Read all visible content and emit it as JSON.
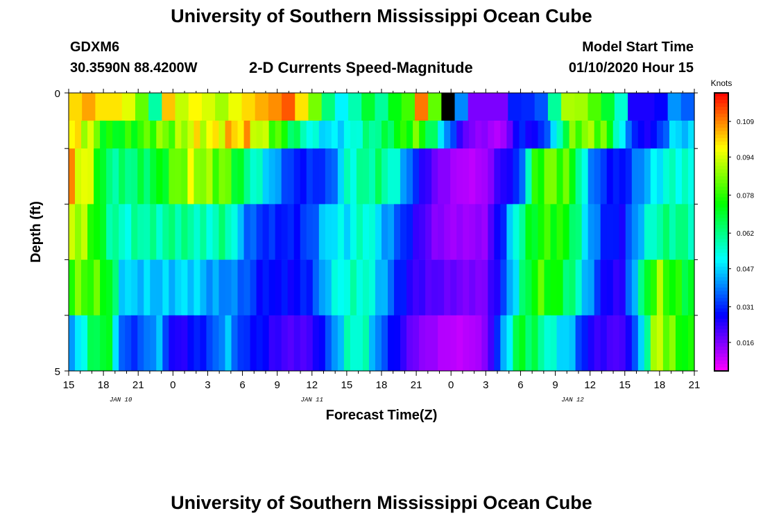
{
  "header": {
    "title": "University of Southern Mississippi Ocean Cube",
    "station": "GDXM6",
    "coords": "30.3590N 88.4200W",
    "subtitle": "2-D Currents Speed-Magnitude",
    "model_start_label": "Model Start Time",
    "model_start_value": "01/10/2020 Hour 15"
  },
  "footer": {
    "title": "University of Southern Mississippi Ocean Cube"
  },
  "chart_data": {
    "type": "heatmap",
    "title": "2-D Currents Speed-Magnitude",
    "xlabel": "Forecast Time(Z)",
    "ylabel": "Depth (ft)",
    "ylim": [
      0,
      5
    ],
    "y_ticks": [
      "0",
      "5"
    ],
    "x_tick_labels": [
      "15",
      "18",
      "21",
      "0",
      "3",
      "6",
      "9",
      "12",
      "15",
      "18",
      "21",
      "0",
      "3",
      "6",
      "9",
      "12",
      "15",
      "18",
      "21"
    ],
    "date_labels": [
      {
        "text": "JAN 10",
        "at_hour": 19.5
      },
      {
        "text": "JAN 11",
        "at_hour": 36
      },
      {
        "text": "JAN 12",
        "at_hour": 58.5
      }
    ],
    "x_hours_range": [
      15,
      69
    ],
    "depth_layers": 5,
    "colorbar": {
      "unit": "Knots",
      "range": [
        0.004,
        0.121
      ],
      "tick_values": [
        0.109,
        0.094,
        0.078,
        0.062,
        0.047,
        0.031,
        0.016
      ],
      "tick_labels": [
        "0.109",
        "0.094",
        "0.078",
        "0.062",
        "0.047",
        "0.031",
        "0.016"
      ]
    },
    "surface_row": [
      0.101,
      0.106,
      0.1,
      0.1,
      0.095,
      0.083,
      0.059,
      0.103,
      0.092,
      0.098,
      0.094,
      0.089,
      0.096,
      0.101,
      0.105,
      0.108,
      0.113,
      0.1,
      0.085,
      0.063,
      0.05,
      0.058,
      0.07,
      0.06,
      0.073,
      0.08,
      0.11,
      0.083,
      0.0,
      0.04,
      0.016,
      0.016,
      0.016,
      0.03,
      0.031,
      0.035,
      0.06,
      0.09,
      0.089,
      0.081,
      0.07,
      0.055,
      0.025,
      0.025,
      0.027,
      0.041,
      0.036
    ],
    "layer_anchors": [
      [
        0.098,
        0.093,
        0.072,
        0.074,
        0.078,
        0.085,
        0.084,
        0.096,
        0.095,
        0.101,
        0.104,
        0.091,
        0.08,
        0.064,
        0.052,
        0.047,
        0.05,
        0.06,
        0.063,
        0.073,
        0.082,
        0.064,
        0.035,
        0.016,
        0.014,
        0.01,
        0.03,
        0.025,
        0.045,
        0.081,
        0.087,
        0.082,
        0.047,
        0.025,
        0.028,
        0.048,
        0.045
      ],
      [
        0.102,
        0.093,
        0.062,
        0.062,
        0.065,
        0.07,
        0.082,
        0.092,
        0.085,
        0.083,
        0.064,
        0.052,
        0.04,
        0.029,
        0.031,
        0.033,
        0.055,
        0.06,
        0.063,
        0.05,
        0.03,
        0.018,
        0.013,
        0.01,
        0.012,
        0.024,
        0.03,
        0.079,
        0.084,
        0.078,
        0.043,
        0.03,
        0.028,
        0.04,
        0.05,
        0.056,
        0.053
      ],
      [
        0.095,
        0.083,
        0.064,
        0.054,
        0.06,
        0.058,
        0.062,
        0.059,
        0.055,
        0.063,
        0.039,
        0.032,
        0.03,
        0.029,
        0.035,
        0.05,
        0.049,
        0.058,
        0.045,
        0.035,
        0.024,
        0.016,
        0.013,
        0.013,
        0.014,
        0.03,
        0.06,
        0.075,
        0.078,
        0.071,
        0.045,
        0.03,
        0.027,
        0.045,
        0.06,
        0.062,
        0.06
      ],
      [
        0.082,
        0.081,
        0.077,
        0.046,
        0.046,
        0.045,
        0.046,
        0.048,
        0.042,
        0.04,
        0.037,
        0.028,
        0.028,
        0.027,
        0.032,
        0.049,
        0.055,
        0.057,
        0.045,
        0.03,
        0.022,
        0.02,
        0.018,
        0.016,
        0.016,
        0.03,
        0.056,
        0.08,
        0.075,
        0.064,
        0.043,
        0.025,
        0.024,
        0.056,
        0.088,
        0.075,
        0.07
      ],
      [
        0.04,
        0.062,
        0.075,
        0.032,
        0.034,
        0.045,
        0.022,
        0.028,
        0.032,
        0.045,
        0.03,
        0.028,
        0.022,
        0.02,
        0.022,
        0.035,
        0.055,
        0.057,
        0.035,
        0.025,
        0.016,
        0.013,
        0.01,
        0.01,
        0.014,
        0.038,
        0.072,
        0.064,
        0.052,
        0.045,
        0.025,
        0.022,
        0.02,
        0.04,
        0.095,
        0.08,
        0.072
      ]
    ]
  }
}
